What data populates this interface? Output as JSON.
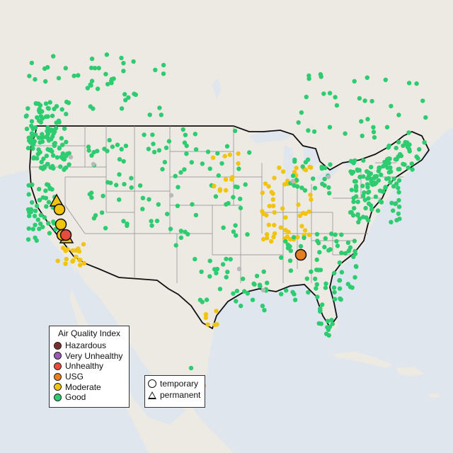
{
  "legend_aqi": {
    "title": "Air Quality Index",
    "items": [
      {
        "label": "Hazardous",
        "color": "#7a2f2f"
      },
      {
        "label": "Very Unhealthy",
        "color": "#9b59b6"
      },
      {
        "label": "Unhealthy",
        "color": "#e74c3c"
      },
      {
        "label": "USG",
        "color": "#e67e22"
      },
      {
        "label": "Moderate",
        "color": "#f1c40f"
      },
      {
        "label": "Good",
        "color": "#2ecc71"
      }
    ]
  },
  "legend_type": {
    "items": [
      {
        "label": "temporary",
        "shape": "circle-icon"
      },
      {
        "label": "permanent",
        "shape": "triangle-icon"
      }
    ]
  },
  "colors": {
    "ocean": "#dfe6ee",
    "land": "#ede9e3",
    "no_data": "#b8b8b8"
  }
}
